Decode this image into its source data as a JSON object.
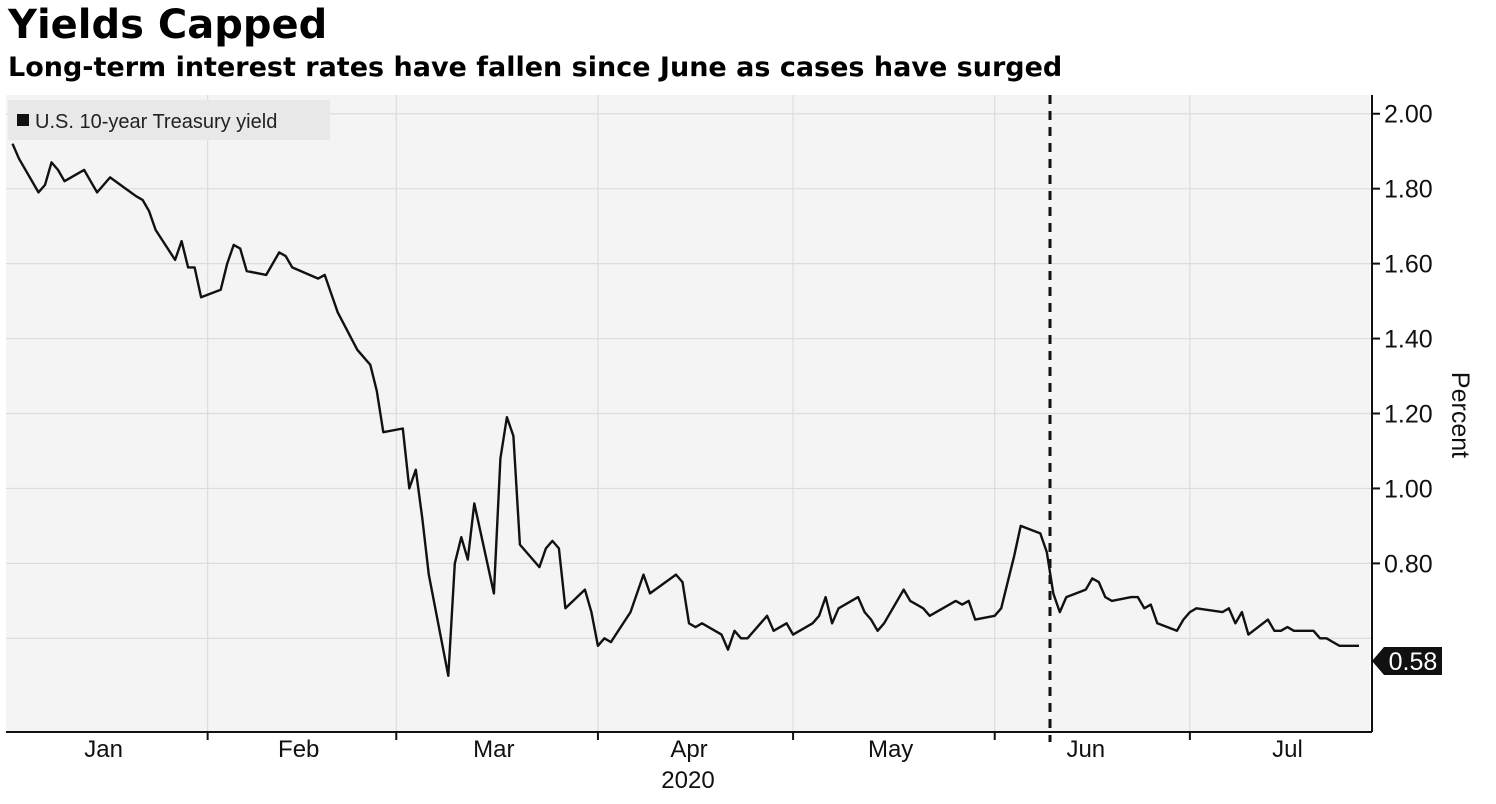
{
  "title": "Yields Capped",
  "subtitle": "Long-term interest rates have fallen since June as cases have surged",
  "chart_data": {
    "type": "line",
    "ylabel": "Percent",
    "ylim": [
      0.35,
      2.05
    ],
    "yticks": [
      "2.00",
      "1.80",
      "1.60",
      "1.40",
      "1.20",
      "1.00",
      "0.80"
    ],
    "xticks": [
      "Jan",
      "Feb",
      "Mar",
      "Apr",
      "May",
      "Jun",
      "Jul"
    ],
    "xsublabel": "2020",
    "grid": true,
    "legend_position": "top-left",
    "annotation": "vertical dashed line at start of June",
    "last_value_label": "0.58",
    "series": [
      {
        "name": "U.S. 10-year Treasury yield",
        "color": "#111111",
        "x": [
          "2020-01-02",
          "2020-01-03",
          "2020-01-06",
          "2020-01-07",
          "2020-01-08",
          "2020-01-09",
          "2020-01-10",
          "2020-01-13",
          "2020-01-14",
          "2020-01-15",
          "2020-01-16",
          "2020-01-17",
          "2020-01-21",
          "2020-01-22",
          "2020-01-23",
          "2020-01-24",
          "2020-01-27",
          "2020-01-28",
          "2020-01-29",
          "2020-01-30",
          "2020-01-31",
          "2020-02-03",
          "2020-02-04",
          "2020-02-05",
          "2020-02-06",
          "2020-02-07",
          "2020-02-10",
          "2020-02-11",
          "2020-02-12",
          "2020-02-13",
          "2020-02-14",
          "2020-02-18",
          "2020-02-19",
          "2020-02-20",
          "2020-02-21",
          "2020-02-24",
          "2020-02-25",
          "2020-02-26",
          "2020-02-27",
          "2020-02-28",
          "2020-03-02",
          "2020-03-03",
          "2020-03-04",
          "2020-03-05",
          "2020-03-06",
          "2020-03-09",
          "2020-03-10",
          "2020-03-11",
          "2020-03-12",
          "2020-03-13",
          "2020-03-16",
          "2020-03-17",
          "2020-03-18",
          "2020-03-19",
          "2020-03-20",
          "2020-03-23",
          "2020-03-24",
          "2020-03-25",
          "2020-03-26",
          "2020-03-27",
          "2020-03-30",
          "2020-03-31",
          "2020-04-01",
          "2020-04-02",
          "2020-04-03",
          "2020-04-06",
          "2020-04-07",
          "2020-04-08",
          "2020-04-09",
          "2020-04-13",
          "2020-04-14",
          "2020-04-15",
          "2020-04-16",
          "2020-04-17",
          "2020-04-20",
          "2020-04-21",
          "2020-04-22",
          "2020-04-23",
          "2020-04-24",
          "2020-04-27",
          "2020-04-28",
          "2020-04-29",
          "2020-04-30",
          "2020-05-01",
          "2020-05-04",
          "2020-05-05",
          "2020-05-06",
          "2020-05-07",
          "2020-05-08",
          "2020-05-11",
          "2020-05-12",
          "2020-05-13",
          "2020-05-14",
          "2020-05-15",
          "2020-05-18",
          "2020-05-19",
          "2020-05-20",
          "2020-05-21",
          "2020-05-22",
          "2020-05-26",
          "2020-05-27",
          "2020-05-28",
          "2020-05-29",
          "2020-06-01",
          "2020-06-02",
          "2020-06-03",
          "2020-06-04",
          "2020-06-05",
          "2020-06-08",
          "2020-06-09",
          "2020-06-10",
          "2020-06-11",
          "2020-06-12",
          "2020-06-15",
          "2020-06-16",
          "2020-06-17",
          "2020-06-18",
          "2020-06-19",
          "2020-06-22",
          "2020-06-23",
          "2020-06-24",
          "2020-06-25",
          "2020-06-26",
          "2020-06-29",
          "2020-06-30",
          "2020-07-01",
          "2020-07-02",
          "2020-07-06",
          "2020-07-07",
          "2020-07-08",
          "2020-07-09",
          "2020-07-10",
          "2020-07-13",
          "2020-07-14",
          "2020-07-15",
          "2020-07-16",
          "2020-07-17",
          "2020-07-20",
          "2020-07-21",
          "2020-07-22",
          "2020-07-23",
          "2020-07-24",
          "2020-07-27"
        ],
        "values": [
          1.92,
          1.88,
          1.79,
          1.81,
          1.87,
          1.85,
          1.82,
          1.85,
          1.82,
          1.79,
          1.81,
          1.83,
          1.78,
          1.77,
          1.74,
          1.69,
          1.61,
          1.66,
          1.59,
          1.59,
          1.51,
          1.53,
          1.6,
          1.65,
          1.64,
          1.58,
          1.57,
          1.6,
          1.63,
          1.62,
          1.59,
          1.56,
          1.57,
          1.52,
          1.47,
          1.37,
          1.35,
          1.33,
          1.26,
          1.15,
          1.16,
          1.0,
          1.05,
          0.92,
          0.77,
          0.5,
          0.8,
          0.87,
          0.81,
          0.96,
          0.72,
          1.08,
          1.19,
          1.14,
          0.85,
          0.79,
          0.84,
          0.86,
          0.84,
          0.68,
          0.73,
          0.67,
          0.58,
          0.6,
          0.59,
          0.67,
          0.72,
          0.77,
          0.72,
          0.77,
          0.75,
          0.64,
          0.63,
          0.64,
          0.61,
          0.57,
          0.62,
          0.6,
          0.6,
          0.66,
          0.62,
          0.63,
          0.64,
          0.61,
          0.64,
          0.66,
          0.71,
          0.64,
          0.68,
          0.71,
          0.67,
          0.65,
          0.62,
          0.64,
          0.73,
          0.7,
          0.69,
          0.68,
          0.66,
          0.7,
          0.69,
          0.7,
          0.65,
          0.66,
          0.68,
          0.75,
          0.82,
          0.9,
          0.88,
          0.83,
          0.72,
          0.67,
          0.71,
          0.73,
          0.76,
          0.75,
          0.71,
          0.7,
          0.71,
          0.71,
          0.68,
          0.69,
          0.64,
          0.62,
          0.65,
          0.67,
          0.68,
          0.67,
          0.68,
          0.64,
          0.67,
          0.61,
          0.65,
          0.62,
          0.62,
          0.63,
          0.62,
          0.62,
          0.6,
          0.6,
          0.59,
          0.58,
          0.58
        ]
      }
    ]
  }
}
